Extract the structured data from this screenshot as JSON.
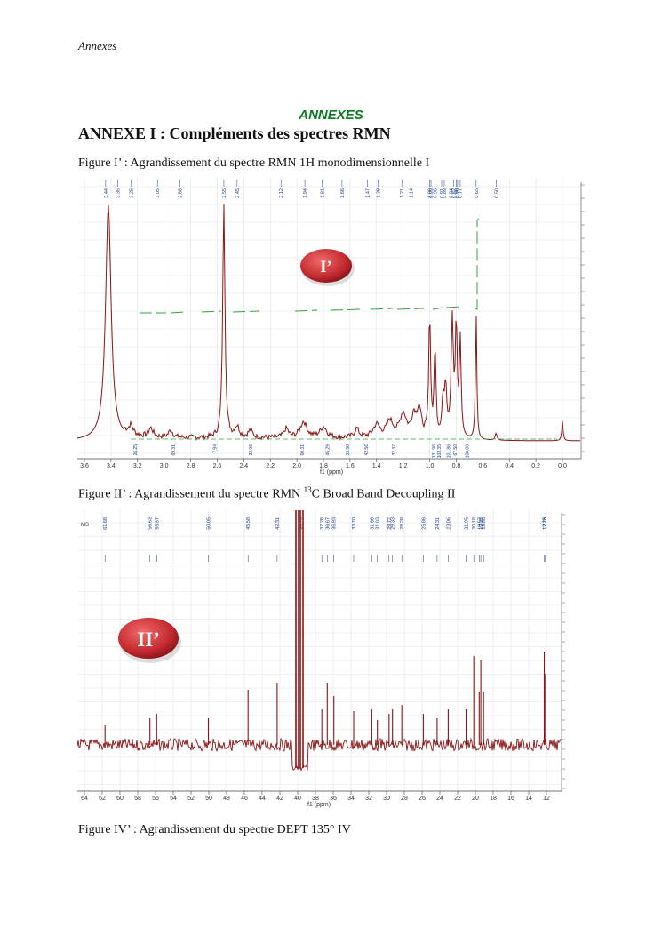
{
  "header": {
    "running_title": "Annexes"
  },
  "section_label": "ANNEXES",
  "annex_title": "ANNEXE I : Compléments des spectres RMN",
  "figure1": {
    "caption": "Figure I’ : Agrandissement du spectre RMN 1H monodimensionnelle I",
    "badge": "I’",
    "axis_label": "f1 (ppm)",
    "ticks": [
      "3.6",
      "3.4",
      "3.2",
      "3.0",
      "2.8",
      "2.6",
      "2.4",
      "2.2",
      "2.0",
      "1.8",
      "1.6",
      "1.4",
      "1.2",
      "1.0",
      "0.8",
      "0.6",
      "0.4",
      "0.2",
      "0.0"
    ],
    "peak_labels": [
      "3.44",
      "3.35",
      "3.25",
      "3.05",
      "2.88",
      "2.55",
      "2.45",
      "2.12",
      "1.94",
      "1.81",
      "1.66",
      "1.47",
      "1.39",
      "1.21",
      "1.14",
      "1.00",
      "0.99",
      "0.96",
      "0.91",
      "0.89",
      "0.84",
      "0.82",
      "0.80",
      "0.79",
      "0.77",
      "0.65",
      "0.50"
    ],
    "integral_labels": [
      "26.25",
      "69.31",
      "7.94",
      "23.06",
      "60.31",
      "45.29",
      "33.50",
      "42.56",
      "32.37",
      "131.96",
      "103.35",
      "101.86",
      "67.50",
      "100.00"
    ]
  },
  "figure2": {
    "caption_prefix": "Figure II’ : Agrandissement du spectre RMN ",
    "caption_sup": "13",
    "caption_suffix": "C Broad Band Decoupling II",
    "badge": "II’",
    "corner_label": "MS",
    "axis_label": "f1 (ppm)",
    "ticks": [
      "64",
      "62",
      "60",
      "58",
      "56",
      "54",
      "52",
      "50",
      "48",
      "46",
      "44",
      "42",
      "40",
      "38",
      "36",
      "34",
      "32",
      "30",
      "28",
      "26",
      "24",
      "22",
      "20",
      "18",
      "16",
      "14",
      "12"
    ],
    "peak_labels": [
      "61.68",
      "56.63",
      "55.87",
      "50.05",
      "45.58",
      "42.31",
      "39.70",
      "37.28",
      "36.67",
      "35.93",
      "33.70",
      "31.66",
      "31.03",
      "29.72",
      "29.33",
      "28.28",
      "25.86",
      "24.31",
      "23.06",
      "21.05",
      "20.18",
      "19.57",
      "19.39",
      "19.08",
      "12.25",
      "12.18"
    ]
  },
  "figure3": {
    "caption": "Figure IV’ : Agrandissement du spectre DEPT 135° IV"
  },
  "colors": {
    "spectrum": "#8b1414",
    "label_blue": "#1a3d8f",
    "integral": "#3aa040",
    "badge": "#c0282d",
    "section": "#0a7a20"
  }
}
